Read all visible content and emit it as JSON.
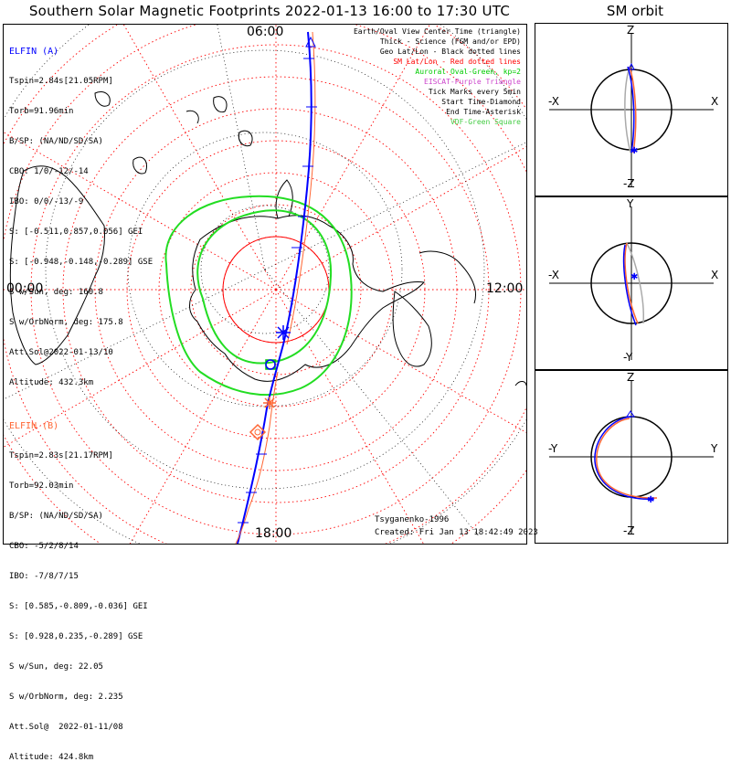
{
  "title": "Southern Solar Magnetic Footprints 2022-01-13 16:00 to 17:30 UTC",
  "sm_title": "SM orbit",
  "mlt_labels": {
    "top": "06:00",
    "left": "00:00",
    "right": "12:00",
    "bottom": "18:00"
  },
  "elfin_a": {
    "name": "ELFIN (A)",
    "lines": [
      "Tspin=2.84s[21.05RPM]",
      "Torb=91.96min",
      "B/SP: (NA/ND/SD/SA)",
      "CBO: 1/0/-12/-14",
      "IBO: 0/0/-13/-9",
      "S: [-0.511,0.857,0.056] GEI",
      "S: [-0.948,-0.148,-0.289] GSE",
      "S w/Sun, deg: 160.8",
      "S w/OrbNorm, deg: 175.8",
      "Att.Sol@2022-01-13/10",
      "Altitude: 432.3km"
    ],
    "color": "#0000ff"
  },
  "elfin_b": {
    "name": "ELFIN (B)",
    "lines": [
      "Tspin=2.83s[21.17RPM]",
      "Torb=92.03min",
      "B/SP: (NA/ND/SD/SA)",
      "CBO: -5/2/8/14",
      "IBO: -7/8/7/15",
      "S: [0.585,-0.809,-0.036] GEI",
      "S: [0.928,0.235,-0.289] GSE",
      "S w/Sun, deg: 22.05",
      "S w/OrbNorm, deg: 2.235",
      "Att.Sol@  2022-01-11/08",
      "Altitude: 424.8km"
    ],
    "color": "#ff6633"
  },
  "legend": [
    {
      "text": "Earth/Oval View Center Time (triangle)",
      "color": "#000000"
    },
    {
      "text": "Thick - Science (FGM and/or EPD)",
      "color": "#000000"
    },
    {
      "text": "Geo Lat/Lon - Black dotted lines",
      "color": "#000000"
    },
    {
      "text": "SM Lat/Lon - Red dotted lines",
      "color": "#ff0000"
    },
    {
      "text": "Auroral Oval-Green, kp=2",
      "color": "#00cc00"
    },
    {
      "text": "EISCAT-Purple Triangle",
      "color": "#cc44cc"
    },
    {
      "text": "Tick Marks every 5min",
      "color": "#000000"
    },
    {
      "text": "Start Time-Diamond",
      "color": "#000000"
    },
    {
      "text": "End Time-Asterisk",
      "color": "#000000"
    },
    {
      "text": "VDF-Green Square",
      "color": "#44cc44"
    }
  ],
  "model": "Tsyganenko-1996",
  "created": "Created: Fri Jan 13 18:42:49 2023",
  "sm_panels": [
    {
      "top": "Z",
      "bottom": "-Z",
      "left": "-X",
      "right": "X"
    },
    {
      "top": "Y",
      "bottom": "-Y",
      "left": "-X",
      "right": "X"
    },
    {
      "top": "Z",
      "bottom": "-Z",
      "left": "-Y",
      "right": "Y"
    }
  ]
}
